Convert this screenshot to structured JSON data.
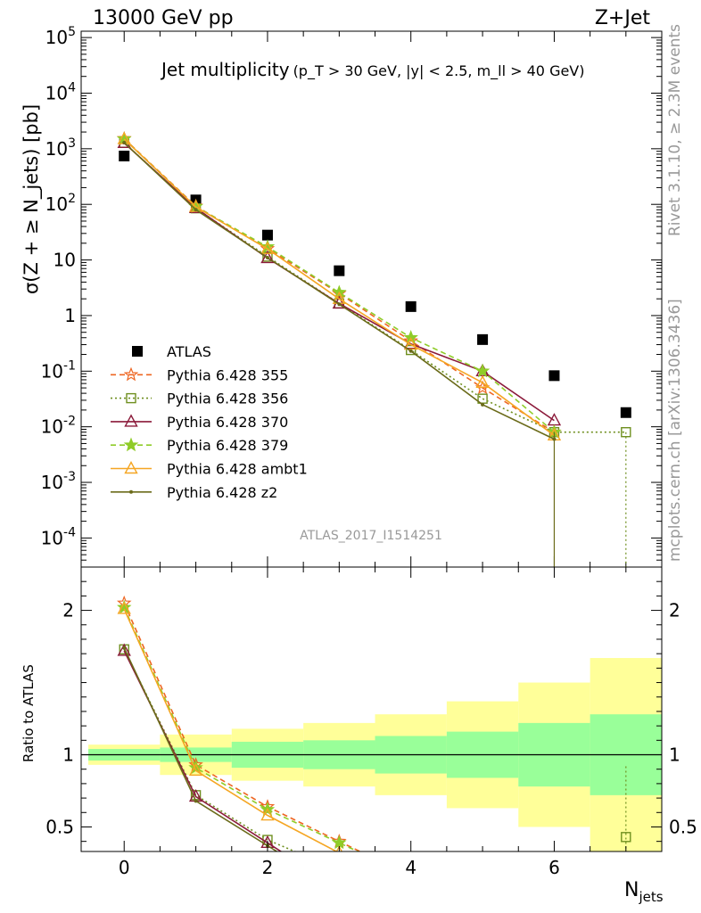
{
  "header": {
    "left": "13000 GeV pp",
    "right": "Z+Jet",
    "side_top": "Rivet 3.1.10, ≥ 2.3M events",
    "side_bottom": "mcplots.cern.ch [arXiv:1306.3436]"
  },
  "chart_data": [
    {
      "type": "scatter",
      "panel": "main",
      "title": "Jet multiplicity",
      "title_cuts": "(p_T > 30 GeV, |y| < 2.5, m_ll > 40 GeV)",
      "ylabel": "σ(Z + ≥ N_jets) [pb]",
      "xlabel": "N_jets",
      "yscale": "log",
      "ylim": [
        3e-05,
        130000
      ],
      "xlim": [
        -0.6,
        7.5
      ],
      "x_ticks": [
        0,
        2,
        4,
        6
      ],
      "y_tick_labels": [
        "10^5",
        "10^4",
        "10^3",
        "10^2",
        "10",
        "1",
        "10^-1",
        "10^-2",
        "10^-3",
        "10^-4"
      ],
      "watermark": "ATLAS_2017_I1514251",
      "legend_position": "bottom-left",
      "series": [
        {
          "name": "ATLAS",
          "color": "#000000",
          "marker": "square",
          "x": [
            0,
            1,
            2,
            3,
            4,
            5,
            6,
            7
          ],
          "y": [
            740,
            120,
            28,
            6.4,
            1.45,
            0.37,
            0.083,
            0.018
          ]
        },
        {
          "name": "Pythia 6.428 355",
          "color": "#ee6622",
          "marker": "star-open",
          "dash": "dashed",
          "x": [
            0,
            1,
            2,
            3,
            4,
            5,
            6
          ],
          "y": [
            1520,
            93,
            16,
            2.5,
            0.35,
            0.05,
            0.008
          ]
        },
        {
          "name": "Pythia 6.428 356",
          "color": "#6f8f1f",
          "marker": "square-open",
          "dash": "dotted",
          "x": [
            0,
            1,
            2,
            3,
            4,
            5,
            6,
            7
          ],
          "y": [
            1280,
            85,
            11.5,
            1.65,
            0.24,
            0.032,
            0.008,
            0.008
          ]
        },
        {
          "name": "Pythia 6.428 370",
          "color": "#8b1a3a",
          "marker": "triangle-open",
          "dash": "solid",
          "x": [
            0,
            1,
            2,
            3,
            4,
            5,
            6
          ],
          "y": [
            1270,
            86,
            10.8,
            1.65,
            0.31,
            0.1,
            0.013
          ]
        },
        {
          "name": "Pythia 6.428 379",
          "color": "#8fcc28",
          "marker": "star",
          "dash": "dashed",
          "x": [
            0,
            1,
            2,
            3,
            4,
            5,
            6
          ],
          "y": [
            1500,
            91,
            17.2,
            2.6,
            0.4,
            0.1,
            0.008
          ]
        },
        {
          "name": "Pythia 6.428 ambt1",
          "color": "#f5a623",
          "marker": "triangle-open",
          "dash": "solid",
          "x": [
            0,
            1,
            2,
            3,
            4,
            5,
            6
          ],
          "y": [
            1490,
            90,
            15.8,
            2.0,
            0.3,
            0.062,
            0.007
          ]
        },
        {
          "name": "Pythia 6.428 z2",
          "color": "#6b6b1a",
          "marker": "dot",
          "dash": "solid",
          "x": [
            0,
            1,
            2,
            3,
            4,
            5,
            6
          ],
          "y": [
            1290,
            80,
            11,
            1.6,
            0.23,
            0.025,
            0.006
          ]
        }
      ]
    },
    {
      "type": "line",
      "panel": "ratio",
      "ylabel": "Ratio to ATLAS",
      "xlabel": "N_jets",
      "ylim": [
        0.33,
        2.3
      ],
      "y_ticks": [
        0.5,
        1,
        2
      ],
      "y_tick_labels": [
        "0.5",
        "1",
        "2"
      ],
      "x_ticks": [
        0,
        2,
        4,
        6
      ],
      "bands": [
        {
          "x0": -0.5,
          "x1": 0.5,
          "green": [
            0.96,
            1.04
          ],
          "yellow": [
            0.93,
            1.07
          ]
        },
        {
          "x0": 0.5,
          "x1": 1.5,
          "green": [
            0.95,
            1.05
          ],
          "yellow": [
            0.86,
            1.14
          ]
        },
        {
          "x0": 1.5,
          "x1": 2.5,
          "green": [
            0.91,
            1.09
          ],
          "yellow": [
            0.82,
            1.18
          ]
        },
        {
          "x0": 2.5,
          "x1": 3.5,
          "green": [
            0.9,
            1.1
          ],
          "yellow": [
            0.78,
            1.22
          ]
        },
        {
          "x0": 3.5,
          "x1": 4.5,
          "green": [
            0.87,
            1.13
          ],
          "yellow": [
            0.72,
            1.28
          ]
        },
        {
          "x0": 4.5,
          "x1": 5.5,
          "green": [
            0.84,
            1.16
          ],
          "yellow": [
            0.63,
            1.37
          ]
        },
        {
          "x0": 5.5,
          "x1": 6.5,
          "green": [
            0.78,
            1.22
          ],
          "yellow": [
            0.5,
            1.5
          ]
        },
        {
          "x0": 6.5,
          "x1": 7.5,
          "green": [
            0.72,
            1.28
          ],
          "yellow": [
            0.33,
            1.67
          ]
        }
      ],
      "series": [
        {
          "name": "Pythia 6.428 355",
          "x": [
            0,
            1,
            2,
            3
          ],
          "y": [
            2.05,
            0.93,
            0.64,
            0.4
          ]
        },
        {
          "name": "Pythia 6.428 356",
          "x": [
            0,
            1,
            2,
            7
          ],
          "y": [
            1.73,
            0.72,
            0.41,
            0.43
          ]
        },
        {
          "name": "Pythia 6.428 370",
          "x": [
            0,
            1,
            2
          ],
          "y": [
            1.72,
            0.71,
            0.39
          ]
        },
        {
          "name": "Pythia 6.428 379",
          "x": [
            0,
            1,
            2,
            3
          ],
          "y": [
            2.02,
            0.91,
            0.62,
            0.39
          ]
        },
        {
          "name": "Pythia 6.428 ambt1",
          "x": [
            0,
            1,
            2,
            3
          ],
          "y": [
            2.01,
            0.89,
            0.58,
            0.32
          ]
        },
        {
          "name": "Pythia 6.428 z2",
          "x": [
            0,
            1,
            2
          ],
          "y": [
            1.74,
            0.68,
            0.37
          ]
        }
      ]
    }
  ]
}
